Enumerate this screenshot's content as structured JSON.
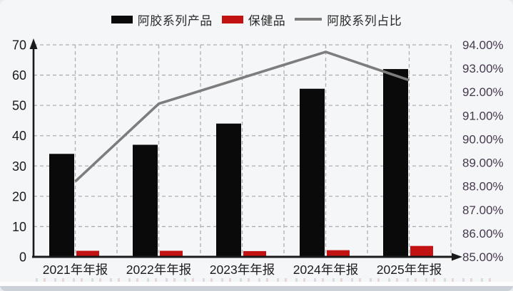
{
  "window": {
    "background": "#f5f6f8",
    "footer_strip_color": "#ccd1d9"
  },
  "chart_data": {
    "type": "combo-bar-line",
    "title": "",
    "categories": [
      "2021年年报",
      "2022年年报",
      "2023年年报",
      "2024年年报",
      "2025年年报"
    ],
    "series": [
      {
        "name": "阿胶系列产品",
        "type": "bar",
        "axis": "left",
        "color": "#0a0a0a",
        "values": [
          34,
          37,
          44,
          55.5,
          62
        ]
      },
      {
        "name": "保健品",
        "type": "bar",
        "axis": "left",
        "color": "#c21212",
        "values": [
          2,
          2,
          1.9,
          2.2,
          3.6
        ]
      },
      {
        "name": "阿胶系列占比",
        "type": "line",
        "axis": "right",
        "color": "#7d7d7d",
        "values": [
          88.2,
          91.5,
          92.6,
          93.7,
          92.5
        ]
      }
    ],
    "left_axis": {
      "min": 0,
      "max": 70,
      "tick_labels_top_down": [
        "70",
        "60",
        "50",
        "40",
        "30",
        "20",
        "10",
        "0"
      ]
    },
    "right_axis": {
      "min": 85,
      "max": 94,
      "tick_labels_top_down": [
        "94.00%",
        "93.00%",
        "92.00%",
        "91.00%",
        "90.00%",
        "89.00%",
        "88.00%",
        "87.00%",
        "86.00%",
        "85.00%"
      ]
    },
    "grid": {
      "horizontal": true,
      "vertical": true,
      "style": "dashed",
      "color": "#aeaeb6"
    },
    "legend_position": "top",
    "axis_color": "#1a1a1a",
    "left_tick_color": "#1b1b1d",
    "right_tick_color": "#46394e",
    "x_tick_color": "#1b1b1d"
  }
}
